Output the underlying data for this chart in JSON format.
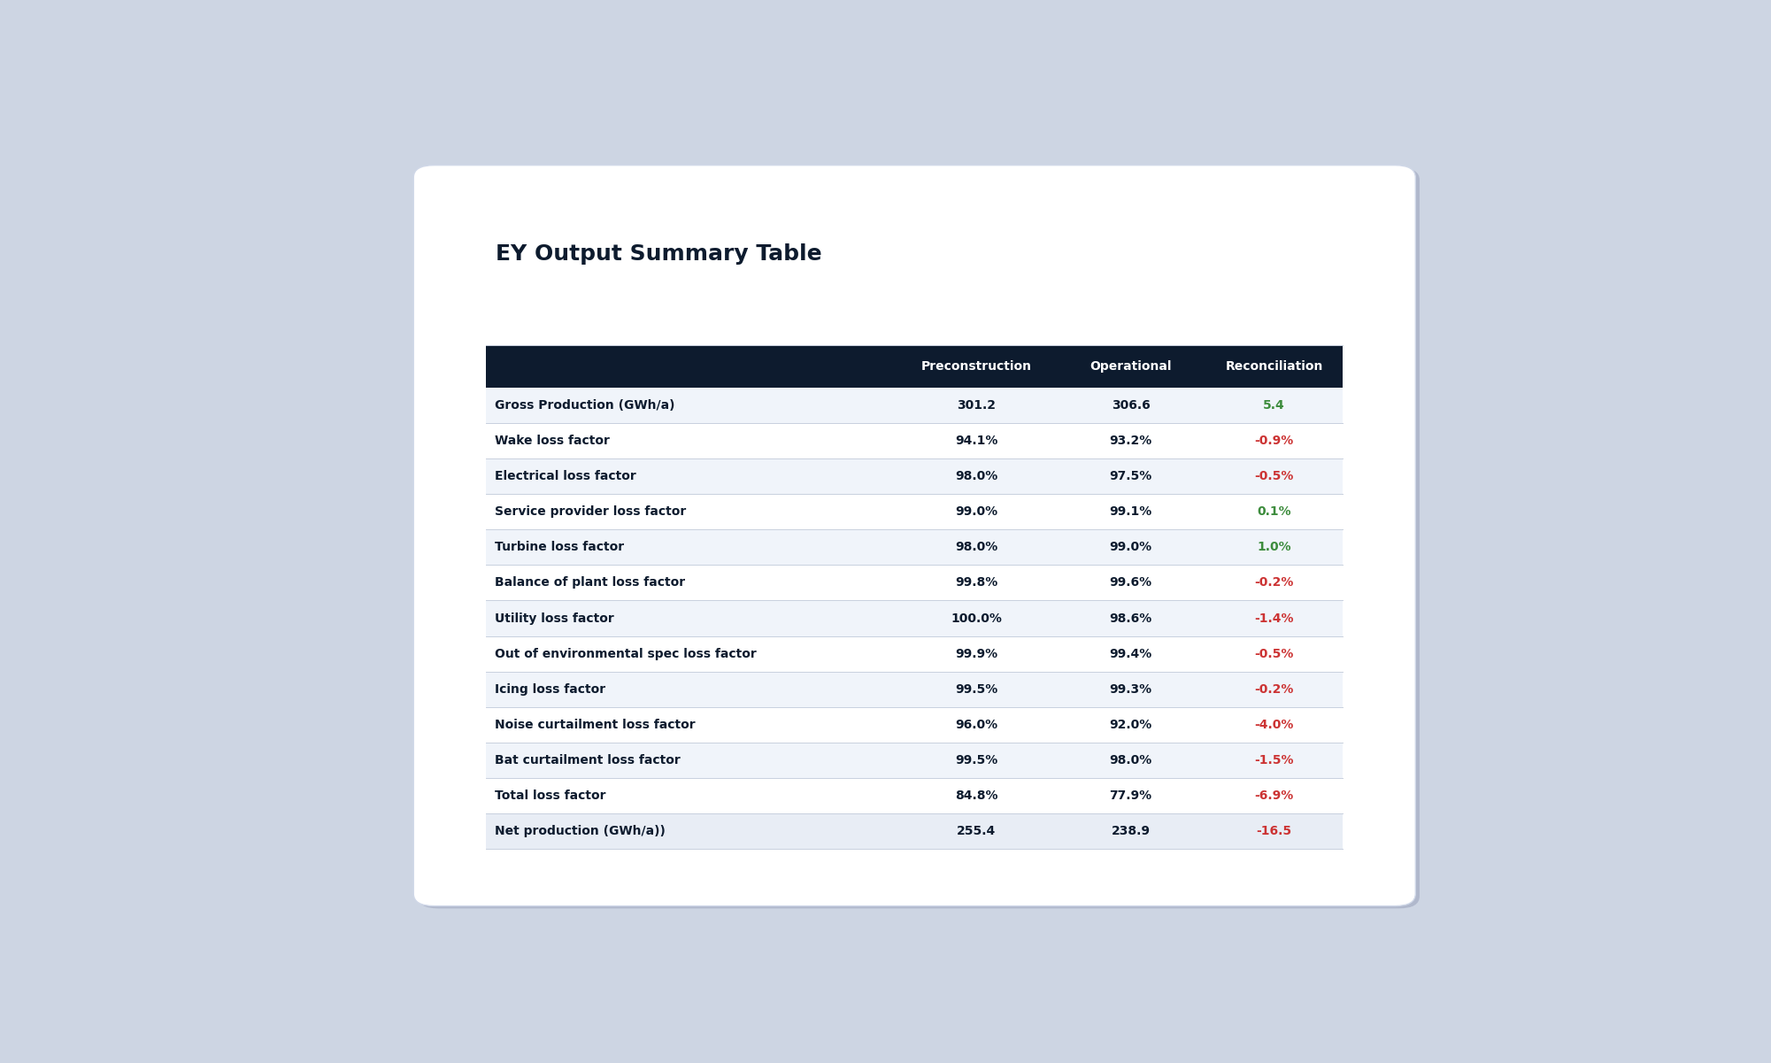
{
  "title": "EY Output Summary Table",
  "header": [
    "",
    "Preconstruction",
    "Operational",
    "Reconciliation"
  ],
  "rows": [
    [
      "Gross Production (GWh/a)",
      "301.2",
      "306.6",
      "5.4"
    ],
    [
      "Wake loss factor",
      "94.1%",
      "93.2%",
      "-0.9%"
    ],
    [
      "Electrical loss factor",
      "98.0%",
      "97.5%",
      "-0.5%"
    ],
    [
      "Service provider loss factor",
      "99.0%",
      "99.1%",
      "0.1%"
    ],
    [
      "Turbine loss factor",
      "98.0%",
      "99.0%",
      "1.0%"
    ],
    [
      "Balance of plant loss factor",
      "99.8%",
      "99.6%",
      "-0.2%"
    ],
    [
      "Utility loss factor",
      "100.0%",
      "98.6%",
      "-1.4%"
    ],
    [
      "Out of environmental spec loss factor",
      "99.9%",
      "99.4%",
      "-0.5%"
    ],
    [
      "Icing loss factor",
      "99.5%",
      "99.3%",
      "-0.2%"
    ],
    [
      "Noise curtailment loss factor",
      "96.0%",
      "92.0%",
      "-4.0%"
    ],
    [
      "Bat curtailment loss factor",
      "99.5%",
      "98.0%",
      "-1.5%"
    ],
    [
      "Total loss factor",
      "84.8%",
      "77.9%",
      "-6.9%"
    ],
    [
      "Net production (GWh/a))",
      "255.4",
      "238.9",
      "-16.5"
    ]
  ],
  "recon_colors_list": [
    "#3d8c3d",
    "#cc3333",
    "#cc3333",
    "#3d8c3d",
    "#3d8c3d",
    "#cc3333",
    "#cc3333",
    "#cc3333",
    "#cc3333",
    "#cc3333",
    "#cc3333",
    "#cc3333",
    "#cc3333"
  ],
  "header_bg": "#0d1b2e",
  "header_fg": "#ffffff",
  "row_bg_odd": "#f0f4fa",
  "row_bg_even": "#ffffff",
  "last_row_bg": "#e8edf5",
  "row_label_color": "#0d1b2e",
  "data_color": "#0d1b2e",
  "title_color": "#0d1b2e",
  "outer_bg": "#cdd5e3",
  "card_bg": "#ffffff",
  "title_fontsize": 18,
  "header_fontsize": 10,
  "cell_fontsize": 10
}
